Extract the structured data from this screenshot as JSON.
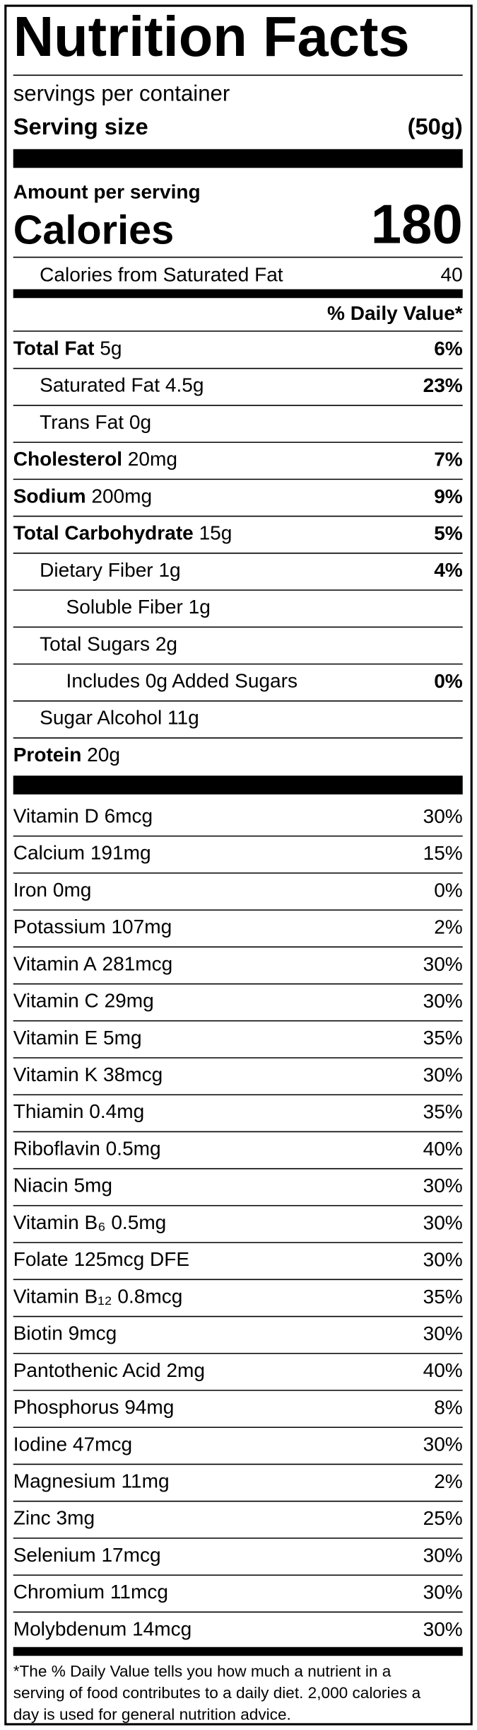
{
  "header": {
    "title": "Nutrition Facts",
    "servings": "servings per container",
    "serving_size_label": "Serving size",
    "serving_size": "(50g)"
  },
  "calories": {
    "amount_label": "Amount per serving",
    "label": "Calories",
    "value": 180,
    "sat_fat_label": "Calories from Saturated Fat",
    "sat_fat_value": 40
  },
  "daily_value_header": "% Daily Value*",
  "nutrients": [
    {
      "name": "Total Fat",
      "amount": "5g",
      "dv": "6%",
      "children": [
        {
          "name": "Saturated Fat",
          "amount": "4.5g",
          "dv": "23%"
        },
        {
          "name": "Trans Fat",
          "amount": "0g"
        }
      ]
    },
    {
      "name": "Cholesterol",
      "amount": "20mg",
      "dv": "7%"
    },
    {
      "name": "Sodium",
      "amount": "200mg",
      "dv": "9%"
    },
    {
      "name": "Total Carbohydrate",
      "amount": "15g",
      "dv": "5%",
      "children": [
        {
          "name": "Dietary Fiber",
          "amount": "1g",
          "dv": "4%",
          "children": [
            {
              "name": "Soluble Fiber",
              "amount": "1g"
            }
          ]
        },
        {
          "name": "Total Sugars",
          "amount": "2g",
          "children": [
            {
              "name": "Includes 0g Added Sugars",
              "dv": "0%"
            }
          ]
        },
        {
          "name": "Sugar Alcohol",
          "amount": "11g"
        }
      ]
    },
    {
      "name": "Protein",
      "amount": "20g"
    }
  ],
  "vitamins": [
    {
      "name": "Vitamin D",
      "amount": "6mcg",
      "dv": "30%"
    },
    {
      "name": "Calcium",
      "amount": "191mg",
      "dv": "15%"
    },
    {
      "name": "Iron",
      "amount": "0mg",
      "dv": "0%"
    },
    {
      "name": "Potassium",
      "amount": "107mg",
      "dv": "2%"
    },
    {
      "name": "Vitamin A",
      "amount": "281mcg",
      "dv": "30%"
    },
    {
      "name": "Vitamin C",
      "amount": "29mg",
      "dv": "30%"
    },
    {
      "name": "Vitamin E",
      "amount": "5mg",
      "dv": "35%"
    },
    {
      "name": "Vitamin K",
      "amount": "38mcg",
      "dv": "30%"
    },
    {
      "name": "Thiamin",
      "amount": "0.4mg",
      "dv": "35%"
    },
    {
      "name": "Riboflavin",
      "amount": "0.5mg",
      "dv": "40%"
    },
    {
      "name": "Niacin",
      "amount": "5mg",
      "dv": "30%"
    },
    {
      "name": "Vitamin B₆",
      "amount": "0.5mg",
      "dv": "30%"
    },
    {
      "name": "Folate",
      "amount": "125mcg DFE",
      "dv": "30%"
    },
    {
      "name": "Vitamin B₁₂",
      "amount": "0.8mcg",
      "dv": "35%"
    },
    {
      "name": "Biotin",
      "amount": "9mcg",
      "dv": "30%"
    },
    {
      "name": "Pantothenic Acid",
      "amount": "2mg",
      "dv": "40%"
    },
    {
      "name": "Phosphorus",
      "amount": "94mg",
      "dv": "8%"
    },
    {
      "name": "Iodine",
      "amount": "47mcg",
      "dv": "30%"
    },
    {
      "name": "Magnesium",
      "amount": "11mg",
      "dv": "2%"
    },
    {
      "name": "Zinc",
      "amount": "3mg",
      "dv": "25%"
    },
    {
      "name": "Selenium",
      "amount": "17mcg",
      "dv": "30%"
    },
    {
      "name": "Chromium",
      "amount": "11mcg",
      "dv": "30%"
    },
    {
      "name": "Molybdenum",
      "amount": "14mcg",
      "dv": "30%"
    }
  ],
  "footnote": [
    "*The % Daily Value tells you how much a nutrient in a",
    "serving of food contributes to a daily diet. 2,000 calories a",
    "day is used for general nutrition advice."
  ]
}
